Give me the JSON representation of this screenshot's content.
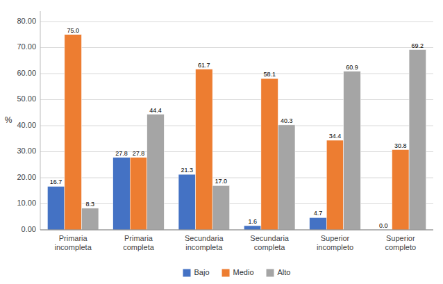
{
  "chart_data": {
    "type": "bar",
    "categories": [
      "Primaria\nincompleta",
      "Primaria\ncompleta",
      "Secundaria\nincompleta",
      "Secundaria\ncompleta",
      "Superior\nincompleto",
      "Superior\ncompleto"
    ],
    "series": [
      {
        "name": "Bajo",
        "color": "#4472C4",
        "values": [
          16.7,
          27.8,
          21.3,
          1.6,
          4.7,
          0.0
        ],
        "value_labels": [
          "16.7",
          "27.8",
          "21.3",
          "1.6",
          "4.7",
          "0.0"
        ]
      },
      {
        "name": "Medio",
        "color": "#ED7D31",
        "values": [
          75.0,
          27.8,
          61.7,
          58.1,
          34.4,
          30.8
        ],
        "value_labels": [
          "75.0",
          "27.8",
          "61.7",
          "58.1",
          "34.4",
          "30.8"
        ]
      },
      {
        "name": "Alto",
        "color": "#A5A5A5",
        "values": [
          8.3,
          44.4,
          17.0,
          40.3,
          60.9,
          69.2
        ],
        "value_labels": [
          "8.3",
          "44.4",
          "17.0",
          "40.3",
          "60.9",
          "69.2"
        ]
      }
    ],
    "ylabel": "%",
    "ylim": [
      0,
      84
    ],
    "yticks": [
      {
        "value": 0,
        "label": "0.00"
      },
      {
        "value": 10,
        "label": "10.00"
      },
      {
        "value": 20,
        "label": "20.00"
      },
      {
        "value": 30,
        "label": "30.00"
      },
      {
        "value": 40,
        "label": "40.00"
      },
      {
        "value": 50,
        "label": "50.00"
      },
      {
        "value": 60,
        "label": "60.00"
      },
      {
        "value": 70,
        "label": "70.00"
      },
      {
        "value": 80,
        "label": "80.00"
      }
    ],
    "grid": true,
    "legend": "bottom",
    "data_labels": true
  }
}
